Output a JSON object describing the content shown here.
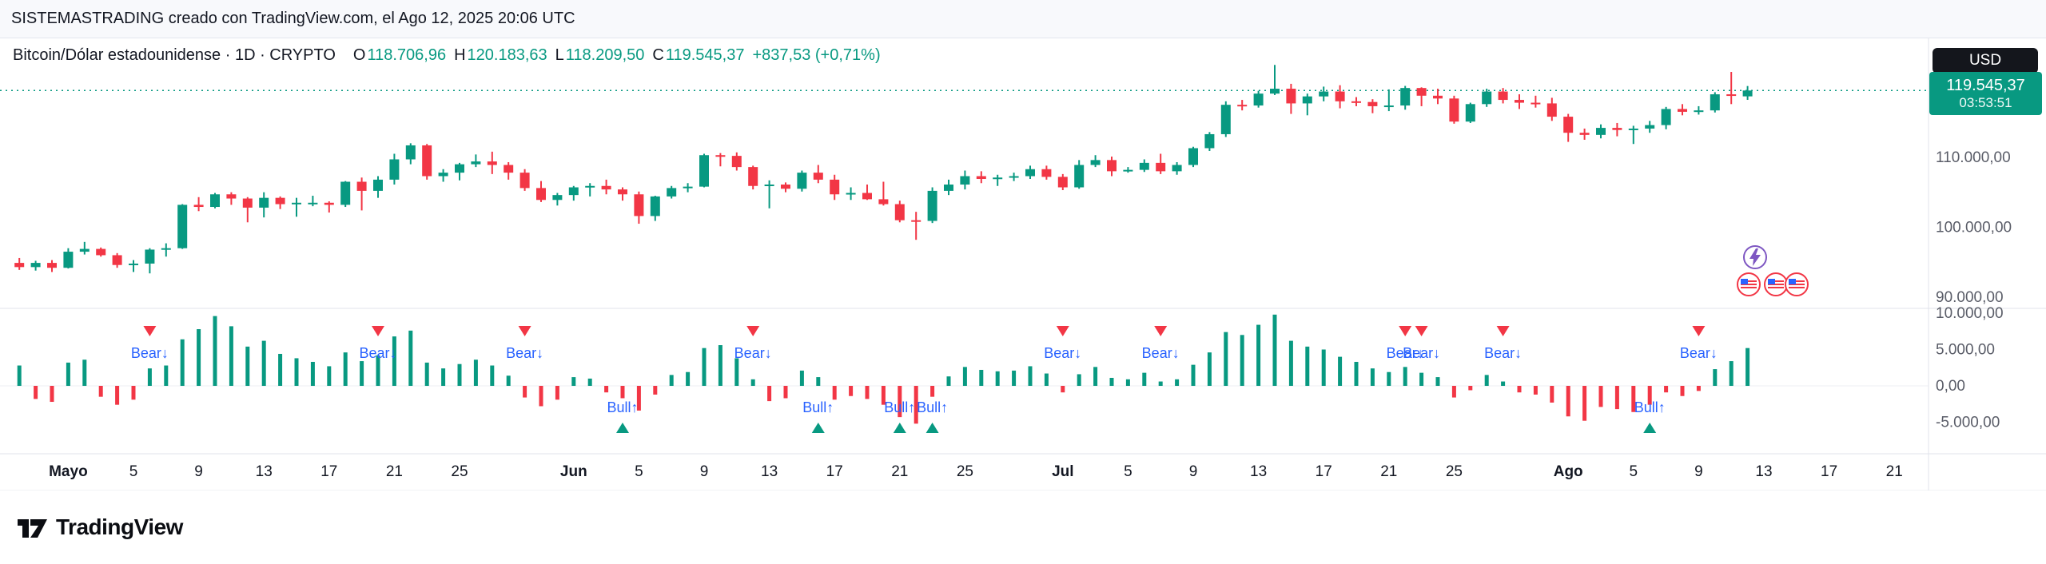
{
  "topbar": {
    "text": "SISTEMASTRADING creado con TradingView.com, el Ago 12, 2025 20:06 UTC"
  },
  "header": {
    "title": "Bitcoin/Dólar estadounidense · 1D · CRYPTO",
    "ohlc": [
      {
        "k": "O",
        "v": "118.706,96"
      },
      {
        "k": "H",
        "v": "120.183,63"
      },
      {
        "k": "L",
        "v": "118.209,50"
      },
      {
        "k": "C",
        "v": "119.545,37"
      }
    ],
    "change": "+837,53 (+0,71%)"
  },
  "price_scale": {
    "currency": "USD",
    "last_price_label": "119.545,37",
    "countdown": "03:53:51",
    "pane1_ticks": [
      {
        "label": "110.000,00",
        "value": 110000
      },
      {
        "label": "100.000,00",
        "value": 100000
      },
      {
        "label": "90.000,00",
        "value": 90000
      }
    ],
    "pane2_ticks": [
      {
        "label": "10.000,00",
        "value": 10000
      },
      {
        "label": "5.000,00",
        "value": 5000
      },
      {
        "label": "0,00",
        "value": 0
      },
      {
        "label": "-5.000,00",
        "value": -5000
      }
    ]
  },
  "markers_legend": {
    "bear_label": "Bear↓",
    "bull_label": "Bull↑"
  },
  "footer": {
    "brand": "TradingView"
  },
  "colors": {
    "up": "#089981",
    "down": "#f23645",
    "signal": "#2962ff",
    "last_price": "#089981",
    "axis_text": "#131722",
    "scale_text": "#5a5d68"
  },
  "chart_data": {
    "type": "candlestick",
    "title": "Bitcoin/Dólar estadounidense · 1D · CRYPTO",
    "currency": "USD",
    "last_price": 119545.37,
    "countdown": "03:53:51",
    "start_date": "2025-04-28",
    "price_axis": {
      "min": 88400,
      "max": 127000,
      "ticks": [
        110000,
        100000,
        90000
      ]
    },
    "indicator_axis": {
      "min": -9340,
      "max": 10660,
      "ticks": [
        10000,
        5000,
        0,
        -5000
      ]
    },
    "candles": [
      [
        "2025-04-28",
        94900,
        95600,
        93900,
        94300
      ],
      [
        "2025-04-29",
        94300,
        95200,
        93800,
        94900
      ],
      [
        "2025-04-30",
        94900,
        95300,
        93600,
        94200
      ],
      [
        "2025-05-01",
        94200,
        97000,
        94100,
        96500
      ],
      [
        "2025-05-02",
        96500,
        97900,
        96100,
        96900
      ],
      [
        "2025-05-03",
        96900,
        97100,
        95800,
        96000
      ],
      [
        "2025-05-04",
        96000,
        96300,
        94200,
        94600
      ],
      [
        "2025-05-05",
        94600,
        95300,
        93600,
        94800
      ],
      [
        "2025-05-06",
        94800,
        97000,
        93400,
        96800
      ],
      [
        "2025-05-07",
        96800,
        97700,
        95800,
        97000
      ],
      [
        "2025-05-08",
        97000,
        103300,
        96900,
        103200
      ],
      [
        "2025-05-09",
        103200,
        104300,
        102300,
        102900
      ],
      [
        "2025-05-10",
        102900,
        104900,
        102700,
        104700
      ],
      [
        "2025-05-11",
        104700,
        105000,
        103200,
        104100
      ],
      [
        "2025-05-12",
        104100,
        104300,
        100700,
        102800
      ],
      [
        "2025-05-13",
        102800,
        105000,
        101400,
        104200
      ],
      [
        "2025-05-14",
        104200,
        104400,
        102600,
        103300
      ],
      [
        "2025-05-15",
        103300,
        104200,
        101500,
        103500
      ],
      [
        "2025-05-16",
        103500,
        104500,
        103000,
        103500
      ],
      [
        "2025-05-17",
        103500,
        103700,
        102100,
        103200
      ],
      [
        "2025-05-18",
        103200,
        106600,
        102900,
        106500
      ],
      [
        "2025-05-19",
        106500,
        107100,
        102400,
        105200
      ],
      [
        "2025-05-20",
        105200,
        107300,
        104200,
        106800
      ],
      [
        "2025-05-21",
        106800,
        110500,
        106100,
        109700
      ],
      [
        "2025-05-22",
        109700,
        112000,
        109000,
        111700
      ],
      [
        "2025-05-23",
        111700,
        111900,
        106800,
        107300
      ],
      [
        "2025-05-24",
        107300,
        108300,
        106500,
        107800
      ],
      [
        "2025-05-25",
        107800,
        109200,
        106700,
        109000
      ],
      [
        "2025-05-26",
        109000,
        110400,
        108600,
        109400
      ],
      [
        "2025-05-27",
        109400,
        110800,
        107600,
        108900
      ],
      [
        "2025-05-28",
        108900,
        109300,
        106800,
        107800
      ],
      [
        "2025-05-29",
        107800,
        108300,
        105200,
        105600
      ],
      [
        "2025-05-30",
        105600,
        106600,
        103600,
        103900
      ],
      [
        "2025-05-31",
        103900,
        104900,
        103100,
        104600
      ],
      [
        "2025-06-01",
        104600,
        105900,
        103800,
        105700
      ],
      [
        "2025-06-02",
        105700,
        106300,
        104400,
        105900
      ],
      [
        "2025-06-03",
        105900,
        106800,
        104700,
        105400
      ],
      [
        "2025-06-04",
        105400,
        105700,
        103800,
        104700
      ],
      [
        "2025-06-05",
        104700,
        105100,
        100500,
        101600
      ],
      [
        "2025-06-06",
        101600,
        104500,
        100900,
        104400
      ],
      [
        "2025-06-07",
        104400,
        105900,
        104100,
        105600
      ],
      [
        "2025-06-08",
        105600,
        106300,
        105000,
        105800
      ],
      [
        "2025-06-09",
        105800,
        110500,
        105700,
        110300
      ],
      [
        "2025-06-10",
        110300,
        110600,
        108700,
        110200
      ],
      [
        "2025-06-11",
        110200,
        110700,
        108100,
        108600
      ],
      [
        "2025-06-12",
        108600,
        108800,
        105400,
        105900
      ],
      [
        "2025-06-13",
        105900,
        106700,
        102700,
        106100
      ],
      [
        "2025-06-14",
        106100,
        106400,
        105000,
        105500
      ],
      [
        "2025-06-15",
        105500,
        108100,
        105100,
        107800
      ],
      [
        "2025-06-16",
        107800,
        108900,
        106300,
        106800
      ],
      [
        "2025-06-17",
        106800,
        107500,
        103900,
        104700
      ],
      [
        "2025-06-18",
        104700,
        105700,
        103900,
        104900
      ],
      [
        "2025-06-19",
        104900,
        106100,
        103900,
        104000
      ],
      [
        "2025-06-20",
        104000,
        106500,
        103100,
        103300
      ],
      [
        "2025-06-21",
        103300,
        103800,
        100700,
        101000
      ],
      [
        "2025-06-22",
        101000,
        102200,
        98200,
        100900
      ],
      [
        "2025-06-23",
        100900,
        105700,
        100600,
        105200
      ],
      [
        "2025-06-24",
        105200,
        106800,
        104600,
        106100
      ],
      [
        "2025-06-25",
        106100,
        108100,
        105400,
        107300
      ],
      [
        "2025-06-26",
        107300,
        108000,
        106300,
        106900
      ],
      [
        "2025-06-27",
        106900,
        107500,
        105900,
        107100
      ],
      [
        "2025-06-28",
        107100,
        107800,
        106600,
        107300
      ],
      [
        "2025-06-29",
        107300,
        108800,
        106900,
        108300
      ],
      [
        "2025-06-30",
        108300,
        108800,
        106800,
        107200
      ],
      [
        "2025-07-01",
        107200,
        107600,
        105300,
        105700
      ],
      [
        "2025-07-02",
        105700,
        109600,
        105500,
        108900
      ],
      [
        "2025-07-03",
        108900,
        110300,
        108600,
        109600
      ],
      [
        "2025-07-04",
        109600,
        110100,
        107300,
        108000
      ],
      [
        "2025-07-05",
        108000,
        108600,
        107800,
        108200
      ],
      [
        "2025-07-06",
        108200,
        109700,
        107900,
        109200
      ],
      [
        "2025-07-07",
        109200,
        110500,
        107600,
        108000
      ],
      [
        "2025-07-08",
        108000,
        109300,
        107500,
        108900
      ],
      [
        "2025-07-09",
        108900,
        111500,
        108600,
        111300
      ],
      [
        "2025-07-10",
        111300,
        113600,
        110900,
        113300
      ],
      [
        "2025-07-11",
        113300,
        118000,
        112900,
        117500
      ],
      [
        "2025-07-12",
        117500,
        118200,
        116700,
        117400
      ],
      [
        "2025-07-13",
        117400,
        119500,
        117100,
        119100
      ],
      [
        "2025-07-14",
        119100,
        123200,
        118900,
        119800
      ],
      [
        "2025-07-15",
        119800,
        120500,
        116200,
        117700
      ],
      [
        "2025-07-16",
        117700,
        119100,
        116000,
        118700
      ],
      [
        "2025-07-17",
        118700,
        120100,
        118000,
        119400
      ],
      [
        "2025-07-18",
        119400,
        120300,
        117000,
        118000
      ],
      [
        "2025-07-19",
        118000,
        118600,
        117300,
        117900
      ],
      [
        "2025-07-20",
        117900,
        118300,
        116300,
        117300
      ],
      [
        "2025-07-21",
        117300,
        119700,
        116600,
        117400
      ],
      [
        "2025-07-22",
        117400,
        120200,
        116800,
        119900
      ],
      [
        "2025-07-23",
        119900,
        120000,
        117300,
        118800
      ],
      [
        "2025-07-24",
        118800,
        119800,
        117600,
        118400
      ],
      [
        "2025-07-25",
        118400,
        118800,
        114800,
        115100
      ],
      [
        "2025-07-26",
        115100,
        117800,
        114900,
        117600
      ],
      [
        "2025-07-27",
        117600,
        119800,
        117200,
        119400
      ],
      [
        "2025-07-28",
        119400,
        119900,
        117700,
        118200
      ],
      [
        "2025-07-29",
        118200,
        119000,
        116900,
        117800
      ],
      [
        "2025-07-30",
        117800,
        118800,
        117100,
        117700
      ],
      [
        "2025-07-31",
        117700,
        118500,
        115200,
        115800
      ],
      [
        "2025-08-01",
        115800,
        116200,
        112200,
        113500
      ],
      [
        "2025-08-02",
        113500,
        114100,
        112500,
        113200
      ],
      [
        "2025-08-03",
        113200,
        114700,
        112700,
        114200
      ],
      [
        "2025-08-04",
        114200,
        114900,
        113000,
        113900
      ],
      [
        "2025-08-05",
        113900,
        114500,
        111900,
        114100
      ],
      [
        "2025-08-06",
        114100,
        115200,
        113500,
        114600
      ],
      [
        "2025-08-07",
        114600,
        117200,
        114000,
        116900
      ],
      [
        "2025-08-08",
        116900,
        117600,
        116000,
        116500
      ],
      [
        "2025-08-09",
        116500,
        117300,
        116100,
        116700
      ],
      [
        "2025-08-10",
        116700,
        119300,
        116400,
        119000
      ],
      [
        "2025-08-11",
        119000,
        122200,
        117600,
        118800
      ],
      [
        "2025-08-12",
        118706.96,
        120183.63,
        118209.5,
        119545.37
      ]
    ],
    "histogram": [
      2800,
      -1800,
      -2200,
      3200,
      3600,
      -1500,
      -2600,
      -1900,
      2400,
      2800,
      6400,
      7800,
      9600,
      8200,
      5400,
      6200,
      4400,
      3800,
      3300,
      2700,
      4600,
      3400,
      4200,
      6800,
      7600,
      3200,
      2400,
      3000,
      3600,
      2800,
      1400,
      -1600,
      -2800,
      -1900,
      1200,
      1000,
      -900,
      -1700,
      -3400,
      -1200,
      1500,
      1900,
      5200,
      5600,
      3800,
      900,
      -2100,
      -1700,
      2100,
      1200,
      -1900,
      -1400,
      -1800,
      -2600,
      -4300,
      -5200,
      -1500,
      1300,
      2600,
      2200,
      2000,
      2100,
      2700,
      1700,
      -900,
      1600,
      2600,
      1100,
      900,
      1800,
      600,
      900,
      2900,
      4600,
      7400,
      7000,
      8400,
      9800,
      6200,
      5400,
      5000,
      4000,
      3300,
      2400,
      1900,
      2600,
      1800,
      1200,
      -1600,
      -600,
      1500,
      600,
      -900,
      -1200,
      -2300,
      -4200,
      -4800,
      -2900,
      -3200,
      -3600,
      -2600,
      -900,
      -1400,
      -700,
      2300,
      3400,
      5200
    ],
    "signals": {
      "bear": [
        "2025-05-06",
        "2025-05-20",
        "2025-05-29",
        "2025-06-12",
        "2025-07-01",
        "2025-07-07",
        "2025-07-22",
        "2025-07-23",
        "2025-07-28",
        "2025-08-09"
      ],
      "bull": [
        "2025-06-04",
        "2025-06-16",
        "2025-06-21",
        "2025-06-23",
        "2025-08-06"
      ]
    },
    "x_ticks": [
      {
        "d": "2025-05-01",
        "label": "Mayo",
        "bold": true
      },
      {
        "d": "2025-05-05",
        "label": "5"
      },
      {
        "d": "2025-05-09",
        "label": "9"
      },
      {
        "d": "2025-05-13",
        "label": "13"
      },
      {
        "d": "2025-05-17",
        "label": "17"
      },
      {
        "d": "2025-05-21",
        "label": "21"
      },
      {
        "d": "2025-05-25",
        "label": "25"
      },
      {
        "d": "2025-06-01",
        "label": "Jun",
        "bold": true
      },
      {
        "d": "2025-06-05",
        "label": "5"
      },
      {
        "d": "2025-06-09",
        "label": "9"
      },
      {
        "d": "2025-06-13",
        "label": "13"
      },
      {
        "d": "2025-06-17",
        "label": "17"
      },
      {
        "d": "2025-06-21",
        "label": "21"
      },
      {
        "d": "2025-06-25",
        "label": "25"
      },
      {
        "d": "2025-07-01",
        "label": "Jul",
        "bold": true
      },
      {
        "d": "2025-07-05",
        "label": "5"
      },
      {
        "d": "2025-07-09",
        "label": "9"
      },
      {
        "d": "2025-07-13",
        "label": "13"
      },
      {
        "d": "2025-07-17",
        "label": "17"
      },
      {
        "d": "2025-07-21",
        "label": "21"
      },
      {
        "d": "2025-07-25",
        "label": "25"
      },
      {
        "d": "2025-08-01",
        "label": "Ago",
        "bold": true
      },
      {
        "d": "2025-08-05",
        "label": "5"
      },
      {
        "d": "2025-08-09",
        "label": "9"
      },
      {
        "d": "2025-08-13",
        "label": "13"
      },
      {
        "d": "2025-08-17",
        "label": "17"
      },
      {
        "d": "2025-08-21",
        "label": "21"
      }
    ]
  }
}
